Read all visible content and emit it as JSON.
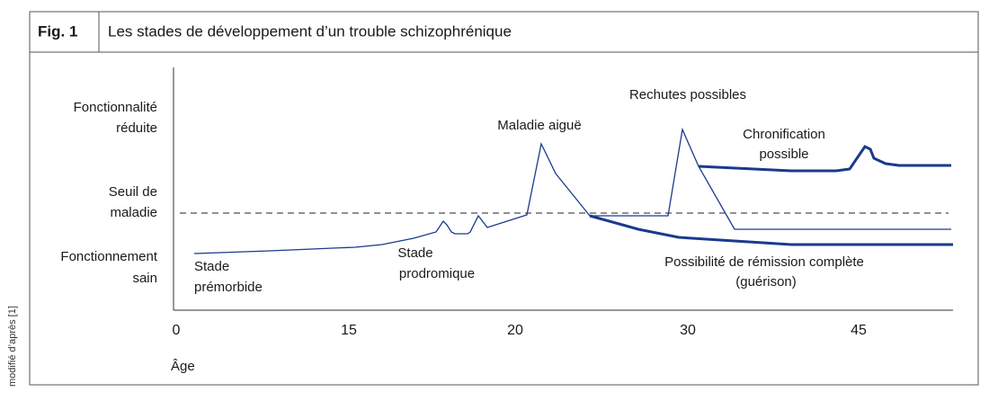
{
  "header": {
    "fig": "Fig. 1",
    "title": "Les stades de développement d’un trouble schizophrénique"
  },
  "source": "modifié d’après [1]",
  "y_labels": [
    [
      "Fonctionnalité",
      "réduite"
    ],
    [
      "Seuil de",
      "maladie"
    ],
    [
      "Fonctionnement",
      "sain"
    ]
  ],
  "x_ticks": [
    "0",
    "15",
    "20",
    "30",
    "45"
  ],
  "x_label": "Âge",
  "annotations": {
    "acute": "Maladie aiguë",
    "relapse": "Rechutes possibles",
    "chronic": [
      "Chronification",
      "possible"
    ],
    "premorbid": [
      "Stade",
      "prémorbide"
    ],
    "prodromal": [
      "Stade",
      "prodromique"
    ],
    "remission": [
      "Possibilité de rémission complète",
      "(guérison)"
    ]
  }
}
